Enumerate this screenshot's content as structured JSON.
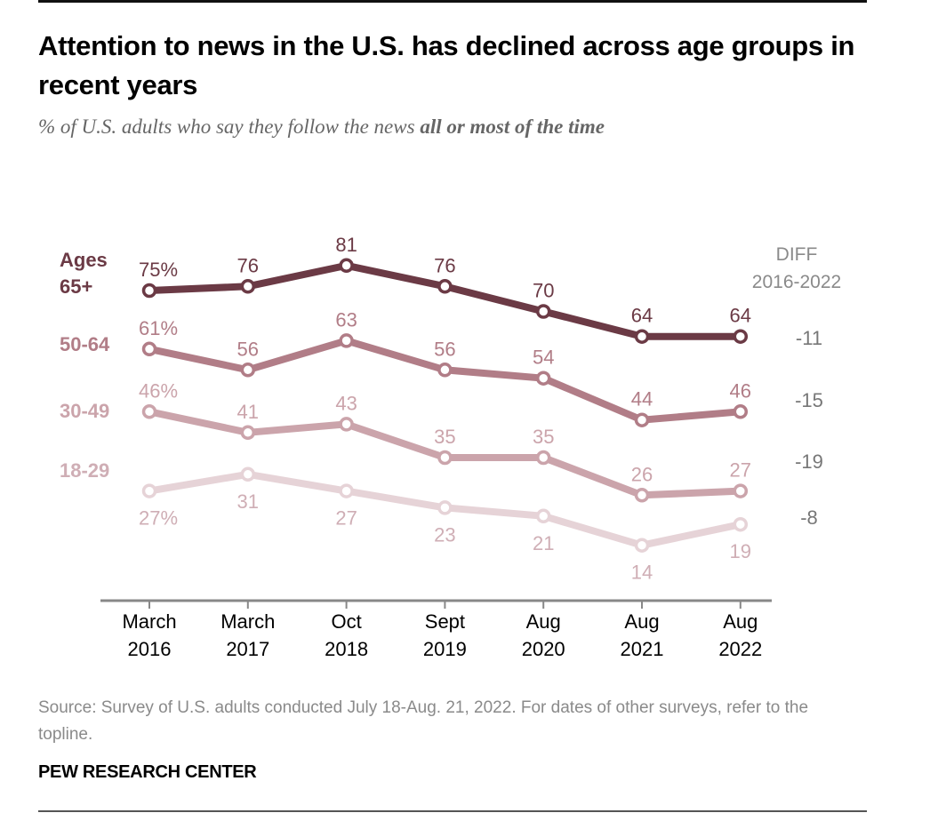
{
  "title": "Attention to news in the U.S. has declined across age groups in recent years",
  "subtitle_plain": "% of U.S. adults who say they follow the news ",
  "subtitle_bold": "all or most of the time",
  "source": "Source: Survey of U.S. adults conducted July 18-Aug. 21, 2022. For dates of other surveys, refer to the topline.",
  "brand": "PEW RESEARCH CENTER",
  "chart_data": {
    "type": "line",
    "title": "Attention to news in the U.S. has declined across age groups in recent years",
    "subtitle": "% of U.S. adults who say they follow the news all or most of the time",
    "xlabel": "",
    "ylabel": "",
    "categories": [
      "March 2016",
      "March 2017",
      "Oct 2018",
      "Sept 2019",
      "Aug 2020",
      "Aug 2021",
      "Aug 2022"
    ],
    "category_lines": [
      [
        "March",
        "2016"
      ],
      [
        "March",
        "2017"
      ],
      [
        "Oct",
        "2018"
      ],
      [
        "Sept",
        "2019"
      ],
      [
        "Aug",
        "2020"
      ],
      [
        "Aug",
        "2021"
      ],
      [
        "Aug",
        "2022"
      ]
    ],
    "grid": false,
    "legend": "left (inline series labels)",
    "diff_header": [
      "DIFF",
      "2016-2022"
    ],
    "series": [
      {
        "name": "65+",
        "label_lines": [
          "Ages",
          "65+"
        ],
        "color": "#6b3a45",
        "values": [
          75,
          76,
          81,
          76,
          70,
          64,
          64
        ],
        "data_labels": [
          "75%",
          "76",
          "81",
          "76",
          "70",
          "64",
          "64"
        ],
        "label_pos": [
          "above",
          "above",
          "above",
          "above",
          "above",
          "above",
          "above"
        ],
        "diff": "-11"
      },
      {
        "name": "50-64",
        "label_lines": [
          "50-64"
        ],
        "color": "#b17d87",
        "values": [
          61,
          56,
          63,
          56,
          54,
          44,
          46
        ],
        "data_labels": [
          "61%",
          "56",
          "63",
          "56",
          "54",
          "44",
          "46"
        ],
        "label_pos": [
          "above",
          "above",
          "above",
          "above",
          "above",
          "above",
          "above"
        ],
        "diff": "-15"
      },
      {
        "name": "30-49",
        "label_lines": [
          "30-49"
        ],
        "color": "#cba4ab",
        "values": [
          46,
          41,
          43,
          35,
          35,
          26,
          27
        ],
        "data_labels": [
          "46%",
          "41",
          "43",
          "35",
          "35",
          "26",
          "27"
        ],
        "label_pos": [
          "above",
          "above",
          "above",
          "above",
          "above",
          "above",
          "above"
        ],
        "diff": "-19"
      },
      {
        "name": "18-29",
        "label_lines": [
          "18-29"
        ],
        "color": "#e6d3d7",
        "text_color": "#cfaeb5",
        "values": [
          27,
          31,
          27,
          23,
          21,
          14,
          19
        ],
        "data_labels": [
          "27%",
          "31",
          "27",
          "23",
          "21",
          "14",
          "19"
        ],
        "label_pos": [
          "below",
          "below",
          "below",
          "below",
          "below",
          "below",
          "below"
        ],
        "diff": "-8"
      }
    ],
    "colors": {
      "axis": "#888888",
      "diff_text": "#777777",
      "tick_text": "#000000"
    }
  }
}
